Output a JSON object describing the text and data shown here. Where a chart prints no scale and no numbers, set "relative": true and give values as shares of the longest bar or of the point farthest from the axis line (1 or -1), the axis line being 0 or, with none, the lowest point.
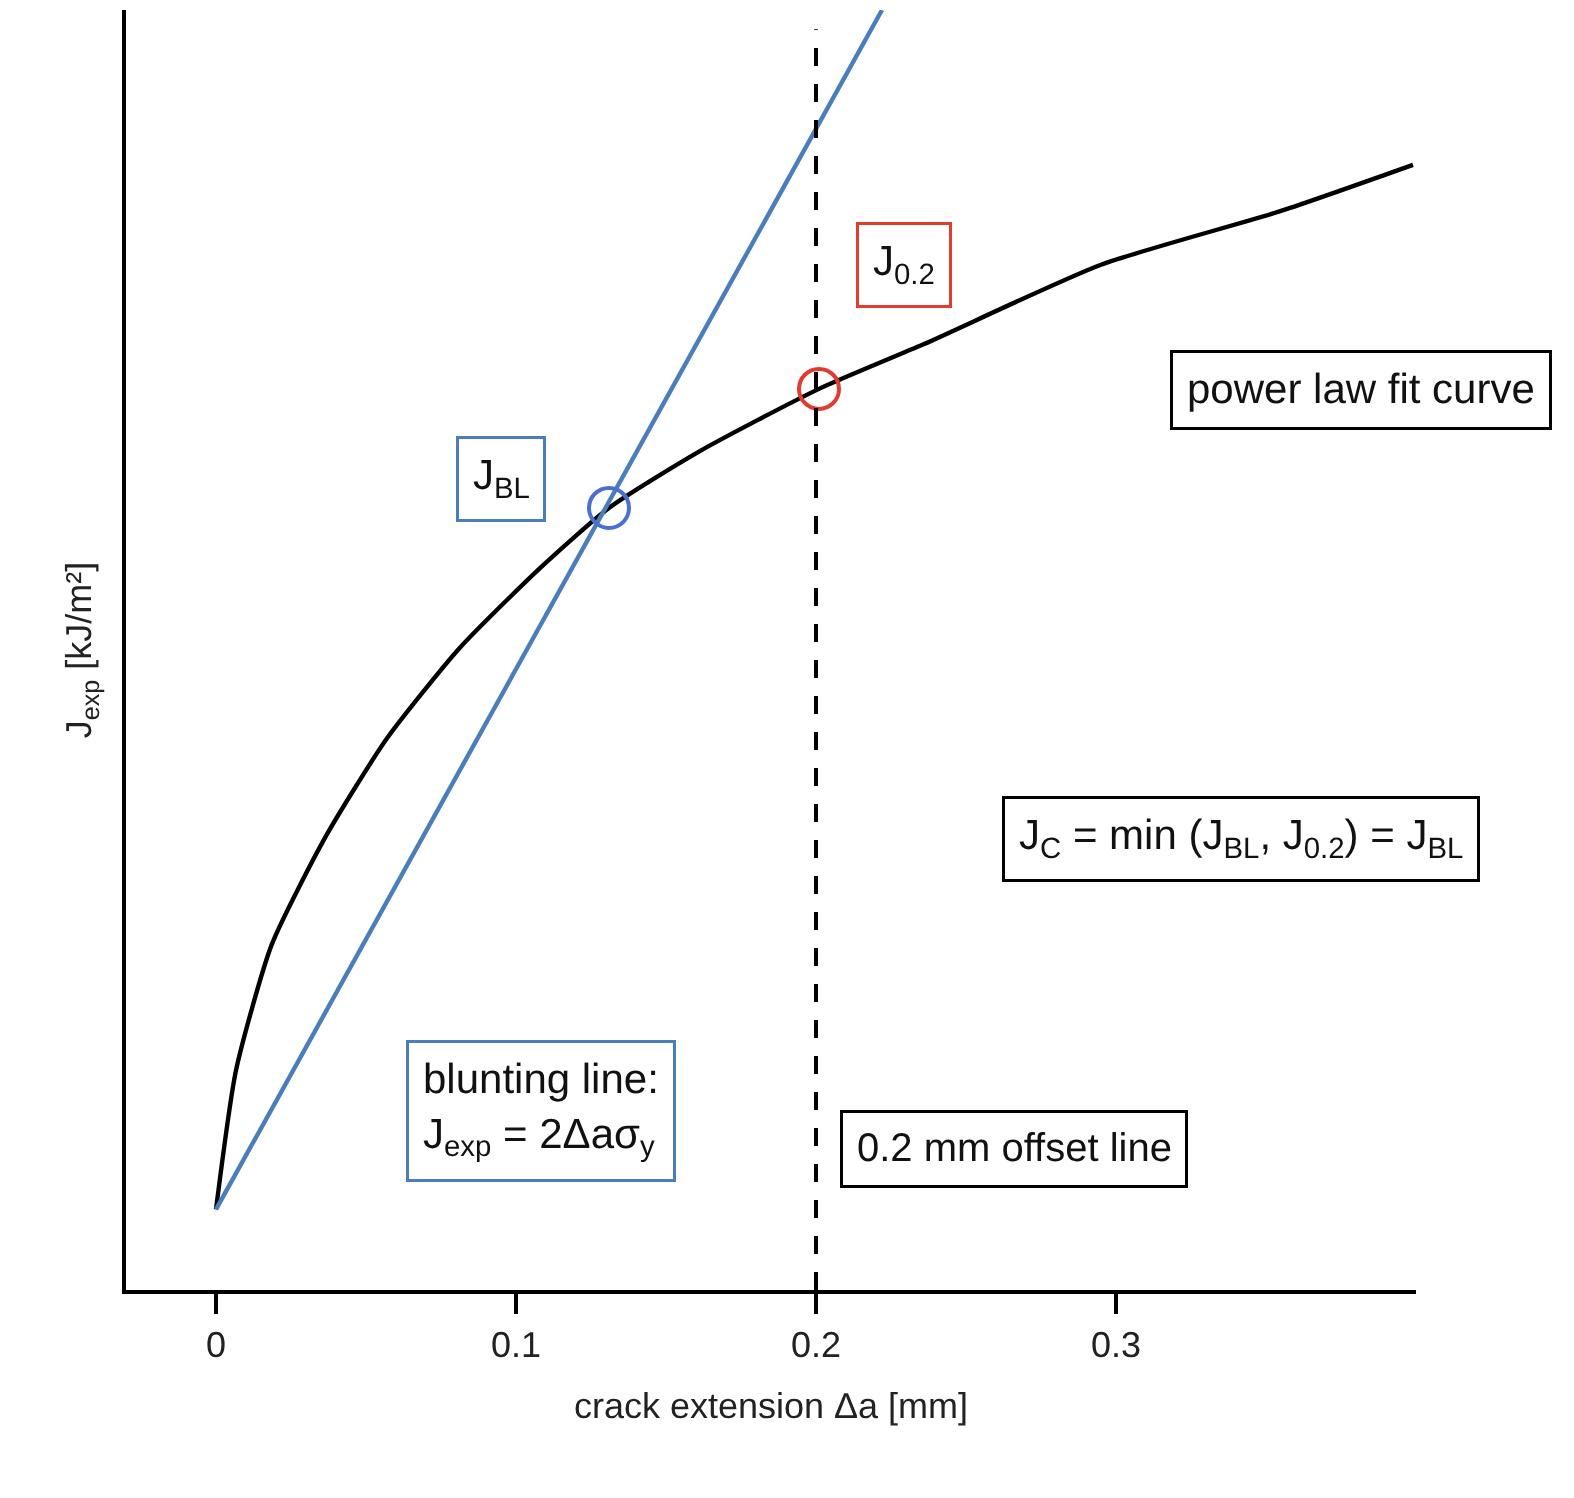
{
  "chart_data": {
    "type": "line",
    "relative": true,
    "xlabel": "crack extension Δa [mm]",
    "ylabel": "J$_{exp}$ [kJ/m²]",
    "xlim": [
      -0.03,
      0.4
    ],
    "xticks": [
      0,
      0.1,
      0.2,
      0.3
    ],
    "tick_labels": "x",
    "series": [
      {
        "color": "#000000",
        "x": [
          0,
          0.0067,
          0.0186,
          0.0365,
          0.057,
          0.081,
          0.108,
          0.131,
          0.161,
          0.201,
          0.236,
          0.295,
          0.355,
          0.399
        ],
        "values": [
          0.063,
          0.172,
          0.27,
          0.354,
          0.431,
          0.501,
          0.564,
          0.611,
          0.655,
          0.704,
          0.739,
          0.801,
          0.843,
          0.879
        ]
      },
      {
        "color": "#4a7ebb",
        "x": [
          0,
          0.222
        ],
        "values": [
          0.063,
          1.0
        ]
      },
      {
        "type": "scatter",
        "marker": "circle",
        "color": "#4a6fd0",
        "x": [
          0.131
        ],
        "values": [
          0.611
        ]
      },
      {
        "type": "scatter",
        "marker": "circle",
        "color": "#e03c31",
        "x": [
          0.201
        ],
        "values": [
          0.704
        ]
      }
    ],
    "ref_lines": [
      {
        "axis": "x",
        "value": 0.2,
        "label": "0.2 mm offset line",
        "color": "#000000",
        "line_style": "dashed"
      }
    ],
    "annotations": [
      "J$_{BL}$",
      "J$_{0.2}$",
      "power law fit curve",
      "J$_{C}$ = min (J$_{BL}$, J$_{0.2}$) = J$_{BL}$",
      "blunting line:\nJ$_{exp}$ = 2Δaσ$_{y}$"
    ]
  }
}
